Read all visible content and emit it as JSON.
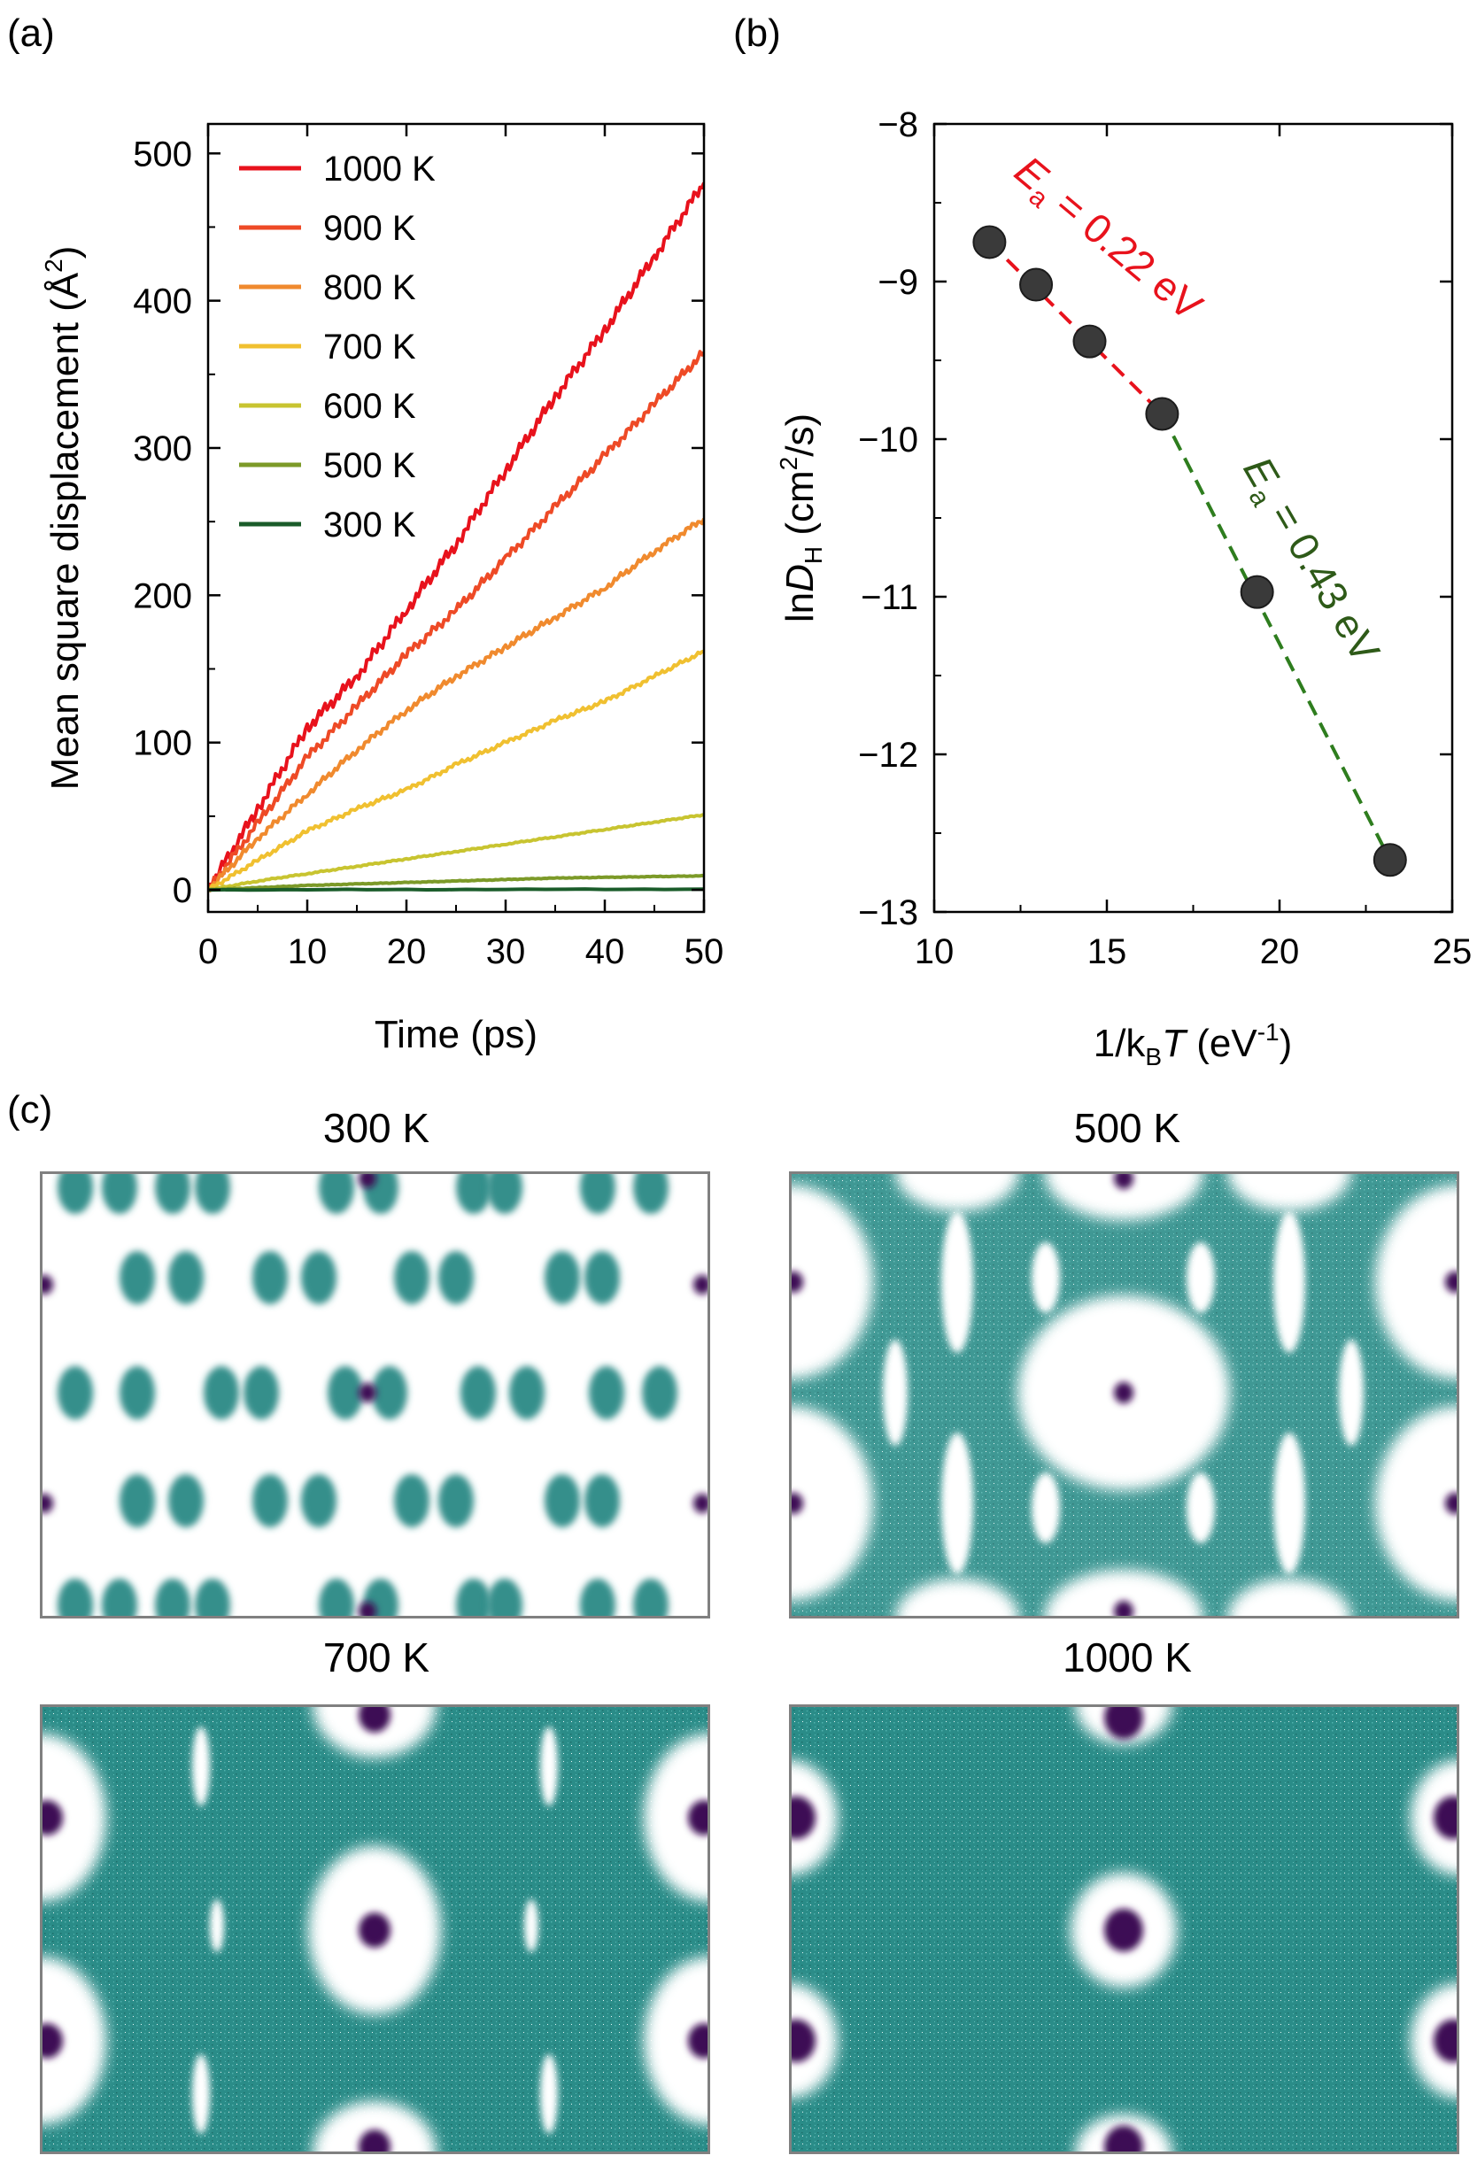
{
  "panel_labels": {
    "a": "(a)",
    "b": "(b)",
    "c": "(c)"
  },
  "colors": {
    "teal": "#2a8c88",
    "purple": "#3d0a55",
    "red_fit": "#e8121c",
    "green_fit": "#2e7d1e",
    "marker": "#3a3a3a",
    "frame": "#808080"
  },
  "chart_data": [
    {
      "id": "a",
      "type": "line",
      "xlabel": "Time (ps)",
      "ylabel_main": "Mean square displacement (Å",
      "ylabel_sup": "2",
      "ylabel_end": ")",
      "xlim": [
        0,
        50
      ],
      "ylim": [
        -15,
        520
      ],
      "xticks": [
        0,
        10,
        20,
        30,
        40,
        50
      ],
      "yticks": [
        0,
        100,
        200,
        300,
        400,
        500
      ],
      "legend_position": "top-left",
      "series": [
        {
          "name": "1000 K",
          "color": "#e8121c",
          "x": [
            0,
            5,
            10,
            15,
            20,
            25,
            30,
            35,
            40,
            45,
            50
          ],
          "y": [
            0,
            55,
            110,
            145,
            190,
            235,
            285,
            335,
            380,
            430,
            480
          ]
        },
        {
          "name": "900 K",
          "color": "#ee4a26",
          "x": [
            0,
            5,
            10,
            15,
            20,
            25,
            30,
            35,
            40,
            45,
            50
          ],
          "y": [
            0,
            45,
            90,
            125,
            160,
            190,
            225,
            260,
            295,
            330,
            365
          ]
        },
        {
          "name": "800 K",
          "color": "#f08a2e",
          "x": [
            0,
            5,
            10,
            15,
            20,
            25,
            30,
            35,
            40,
            45,
            50
          ],
          "y": [
            0,
            35,
            65,
            95,
            122,
            145,
            165,
            185,
            205,
            230,
            252
          ]
        },
        {
          "name": "700 K",
          "color": "#f0c030",
          "x": [
            0,
            5,
            10,
            15,
            20,
            25,
            30,
            35,
            40,
            45,
            50
          ],
          "y": [
            0,
            20,
            40,
            55,
            68,
            85,
            100,
            115,
            128,
            145,
            162
          ]
        },
        {
          "name": "600 K",
          "color": "#c8c430",
          "x": [
            0,
            5,
            10,
            15,
            20,
            25,
            30,
            35,
            40,
            45,
            50
          ],
          "y": [
            0,
            6,
            11,
            16,
            21,
            26,
            31,
            36,
            41,
            46,
            51
          ]
        },
        {
          "name": "500 K",
          "color": "#7c9a28",
          "x": [
            0,
            5,
            10,
            15,
            20,
            25,
            30,
            35,
            40,
            45,
            50
          ],
          "y": [
            0,
            1.5,
            3,
            4,
            5,
            6,
            7,
            8,
            8.5,
            9,
            9.5
          ]
        },
        {
          "name": "300 K",
          "color": "#1a5c2a",
          "x": [
            0,
            50
          ],
          "y": [
            0,
            0.5
          ]
        }
      ]
    },
    {
      "id": "b",
      "type": "scatter",
      "xlabel_main": "1/k",
      "xlabel_sub": "B",
      "xlabel_T": "T",
      "xlabel_unit": " (eV",
      "xlabel_sup": "-1",
      "xlabel_end": ")",
      "ylabel_ln": "ln",
      "ylabel_D": "D",
      "ylabel_sub": "H",
      "ylabel_unit": " (cm",
      "ylabel_sup": "2",
      "ylabel_end": "/s)",
      "xlim": [
        10,
        25
      ],
      "ylim": [
        -13,
        -8
      ],
      "xticks": [
        10,
        15,
        20,
        25
      ],
      "yticks": [
        -8,
        -9,
        -10,
        -11,
        -12,
        -13
      ],
      "points": {
        "x": [
          11.6,
          12.95,
          14.5,
          16.6,
          19.35,
          23.2
        ],
        "y": [
          -8.75,
          -9.02,
          -9.38,
          -9.84,
          -10.97,
          -12.67
        ]
      },
      "fits": [
        {
          "name": "high-T fit",
          "x": [
            11.6,
            16.6
          ],
          "y": [
            -8.75,
            -9.84
          ],
          "color": "#e8121c",
          "annotation_E": "E",
          "annotation_sub": "a",
          "annotation_text": " = 0.22 eV"
        },
        {
          "name": "low-T fit",
          "x": [
            16.6,
            23.2
          ],
          "y": [
            -9.84,
            -12.67
          ],
          "color": "#2e7d1e",
          "annotation_E": "E",
          "annotation_sub": "a",
          "annotation_text": " = 0.43 eV"
        }
      ]
    }
  ],
  "panel_c": {
    "maps": [
      {
        "title": "300 K",
        "mode": "islands"
      },
      {
        "title": "500 K",
        "mode": "network"
      },
      {
        "title": "700 K",
        "mode": "filled"
      },
      {
        "title": "1000 K",
        "mode": "near_full"
      }
    ]
  }
}
